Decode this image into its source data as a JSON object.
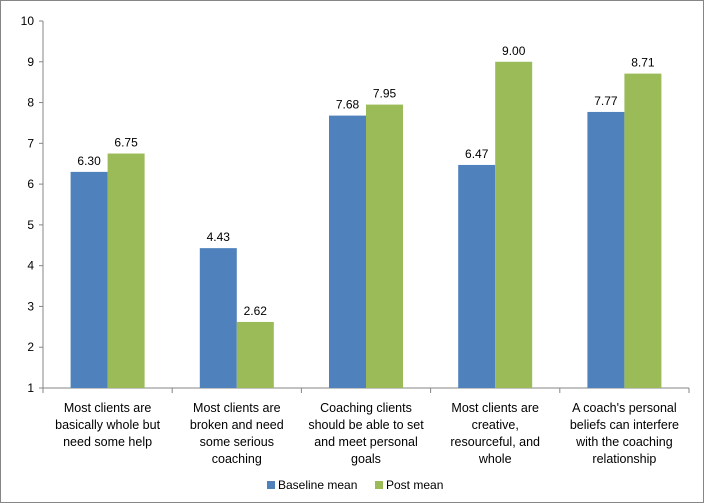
{
  "chart_data": {
    "type": "bar",
    "title": "",
    "xlabel": "",
    "ylabel": "",
    "ylim": [
      1,
      10
    ],
    "yticks": [
      1,
      2,
      3,
      4,
      5,
      6,
      7,
      8,
      9,
      10
    ],
    "grid": false,
    "legend_position": "bottom",
    "categories": [
      [
        "Most clients are",
        "basically whole but",
        "need some help"
      ],
      [
        "Most clients are",
        "broken and need",
        "some serious",
        "coaching"
      ],
      [
        "Coaching clients",
        "should be able to set",
        "and meet personal",
        "goals"
      ],
      [
        "Most clients are",
        "creative,",
        "resourceful, and",
        "whole"
      ],
      [
        "A coach's personal",
        "beliefs can interfere",
        "with the coaching",
        "relationship"
      ]
    ],
    "series": [
      {
        "name": "Baseline mean",
        "color": "#4F81BD",
        "values": [
          6.3,
          4.43,
          7.68,
          6.47,
          7.77
        ],
        "labels": [
          "6.30",
          "4.43",
          "7.68",
          "6.47",
          "7.77"
        ]
      },
      {
        "name": "Post mean",
        "color": "#9BBB59",
        "values": [
          6.75,
          2.62,
          7.95,
          9.0,
          8.71
        ],
        "labels": [
          "6.75",
          "2.62",
          "7.95",
          "9.00",
          "8.71"
        ]
      }
    ]
  }
}
